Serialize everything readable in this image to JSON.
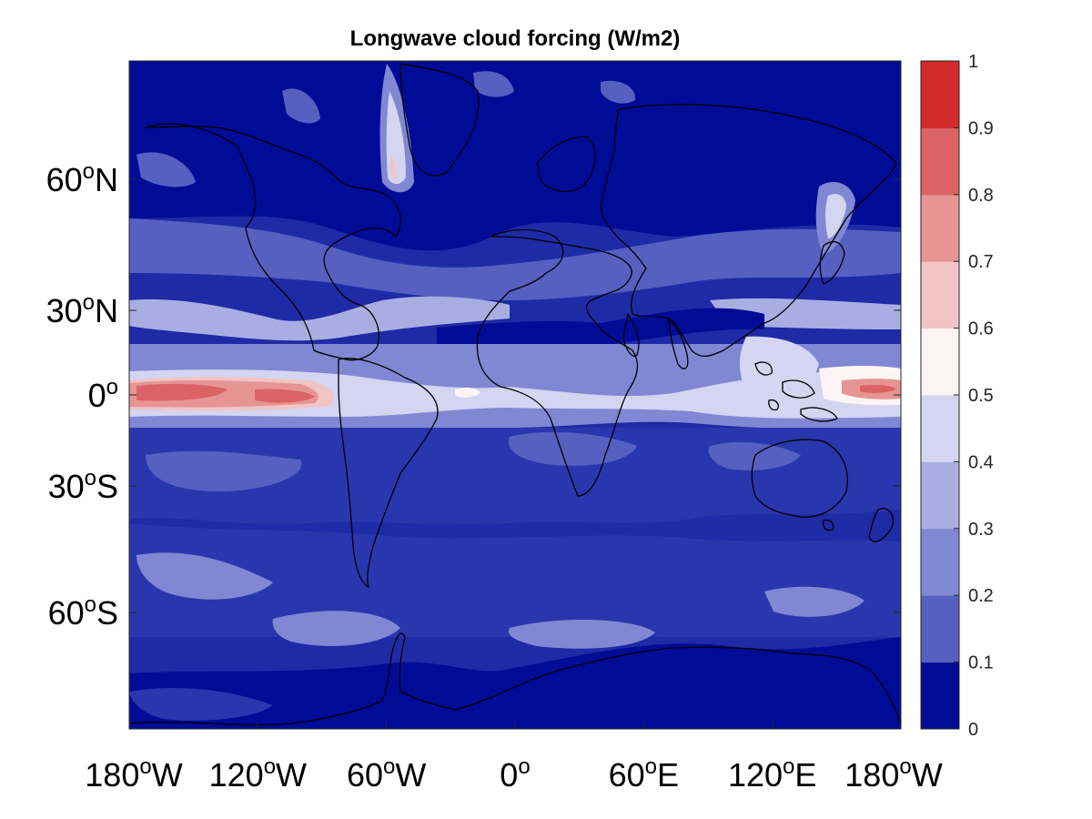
{
  "title": "Longwave cloud forcing (W/m2)",
  "colors": {
    "levels": [
      "#000c96",
      "#2a36ad",
      "#5560c1",
      "#8088d3",
      "#a9aee2",
      "#d3d5f1",
      "#fdf5f5",
      "#f2c4c4",
      "#e69595",
      "#dc6363",
      "#d32a2a"
    ]
  },
  "chart_data": {
    "type": "heatmap",
    "title": "Longwave cloud forcing (W/m2)",
    "projection": "equirectangular (lon/lat)",
    "x_range_deg": [
      -180,
      180
    ],
    "y_range_deg": [
      -90,
      90
    ],
    "lat_ticks": [
      {
        "value": 60,
        "deg": "60",
        "sup": "o",
        "hem": "N"
      },
      {
        "value": 30,
        "deg": "30",
        "sup": "o",
        "hem": "N"
      },
      {
        "value": 0,
        "deg": "0",
        "sup": "o",
        "hem": ""
      },
      {
        "value": -30,
        "deg": "30",
        "sup": "o",
        "hem": "S"
      },
      {
        "value": -60,
        "deg": "60",
        "sup": "o",
        "hem": "S"
      }
    ],
    "lon_ticks": [
      {
        "value": -180,
        "deg": "180",
        "sup": "o",
        "hem": "W"
      },
      {
        "value": -120,
        "deg": "120",
        "sup": "o",
        "hem": "W"
      },
      {
        "value": -60,
        "deg": "60",
        "sup": "o",
        "hem": "W"
      },
      {
        "value": 0,
        "deg": "0",
        "sup": "o",
        "hem": ""
      },
      {
        "value": 60,
        "deg": "60",
        "sup": "o",
        "hem": "E"
      },
      {
        "value": 120,
        "deg": "120",
        "sup": "o",
        "hem": "E"
      },
      {
        "value": 180,
        "deg": "180",
        "sup": "o",
        "hem": "W"
      }
    ],
    "colorbar": {
      "range": [
        0,
        1
      ],
      "ticks": [
        "0",
        "0.1",
        "0.2",
        "0.3",
        "0.4",
        "0.5",
        "0.6",
        "0.7",
        "0.8",
        "0.9",
        "1"
      ]
    },
    "features": [
      {
        "name": "central-pacific-equatorial-maximum",
        "lon_range": [
          -180,
          -80
        ],
        "lat_range": [
          -5,
          5
        ],
        "value": 0.9
      },
      {
        "name": "western-pacific-equatorial",
        "lon_range": [
          150,
          180
        ],
        "lat_range": [
          -4,
          4
        ],
        "value": 0.85
      },
      {
        "name": "labrador-sea-tongue",
        "lon_range": [
          -60,
          -40
        ],
        "lat_range": [
          55,
          80
        ],
        "value": 0.65
      },
      {
        "name": "sea-of-okhotsk",
        "lon_range": [
          140,
          160
        ],
        "lat_range": [
          45,
          65
        ],
        "value": 0.55
      },
      {
        "name": "maritime-continent-band",
        "lon_range": [
          90,
          150
        ],
        "lat_range": [
          -10,
          20
        ],
        "value": 0.45
      },
      {
        "name": "southern-ocean",
        "lon_range": [
          -180,
          180
        ],
        "lat_range": [
          -90,
          -40
        ],
        "value": 0.15
      }
    ]
  }
}
